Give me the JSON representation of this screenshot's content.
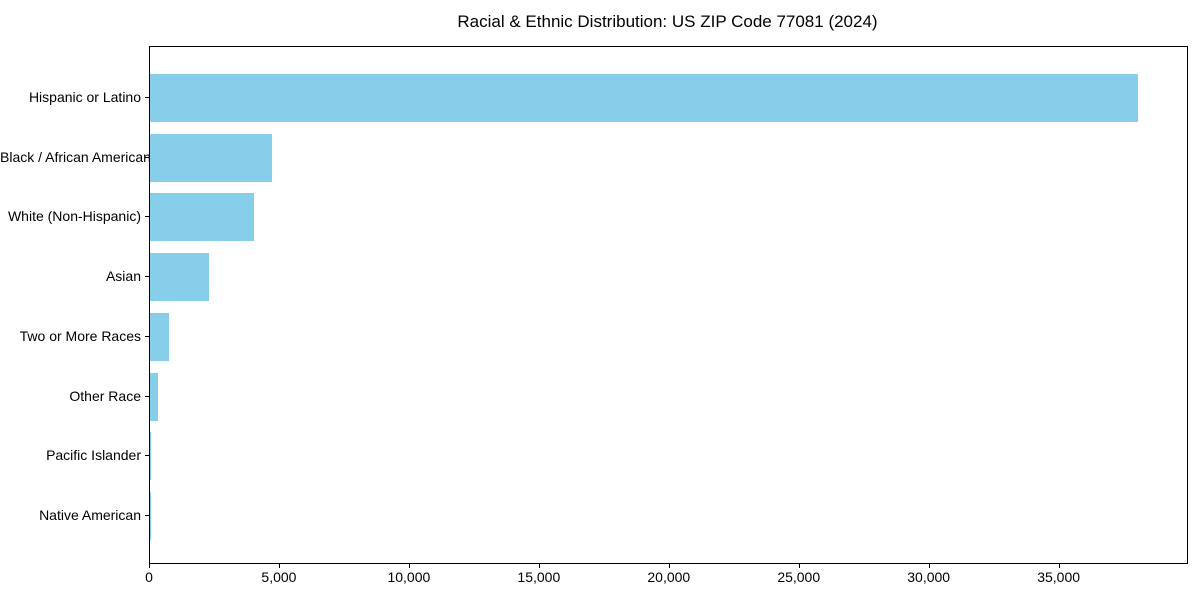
{
  "chart_data": {
    "type": "bar",
    "orientation": "horizontal",
    "title": "Racial & Ethnic Distribution: US ZIP Code 77081 (2024)",
    "categories": [
      "Hispanic or Latino",
      "Black / African American",
      "White (Non-Hispanic)",
      "Asian",
      "Two or More Races",
      "Other Race",
      "Pacific Islander",
      "Native American"
    ],
    "values": [
      38000,
      4700,
      4000,
      2280,
      720,
      300,
      40,
      10
    ],
    "xlabel": "",
    "ylabel": "",
    "xlim": [
      0,
      39900
    ],
    "x_ticks": [
      0,
      5000,
      10000,
      15000,
      20000,
      25000,
      30000,
      35000
    ],
    "x_tick_labels": [
      "0",
      "5,000",
      "10,000",
      "15,000",
      "20,000",
      "25,000",
      "30,000",
      "35,000"
    ],
    "bar_color": "#87CEEB",
    "text_color": "#000000",
    "spine_color": "#000000",
    "background_color": "#ffffff",
    "grid": false,
    "legend": null
  }
}
